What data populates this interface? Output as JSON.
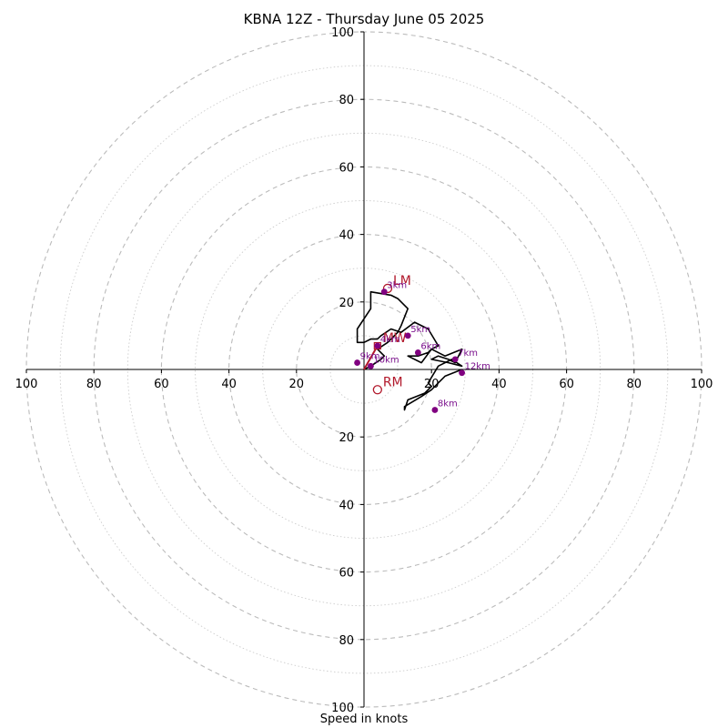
{
  "chart_data": {
    "type": "hodograph",
    "title": "KBNA 12Z - Thursday June 05 2025",
    "xlabel": "Speed in knots",
    "ylabel": "",
    "rlim": [
      0,
      100
    ],
    "tick_labels": [
      "100",
      "80",
      "60",
      "40",
      "20",
      "20",
      "40",
      "60",
      "80",
      "100"
    ],
    "grid": true,
    "hodograph_trace": {
      "u": [
        0,
        2,
        5,
        6,
        4,
        7,
        10,
        11,
        13,
        10,
        8,
        2,
        2,
        -2,
        -2,
        0,
        2,
        4,
        5,
        8,
        11,
        15,
        19,
        22,
        20,
        19,
        16,
        13,
        17,
        20,
        24,
        29,
        27,
        25,
        22,
        20,
        20,
        25,
        29,
        26,
        22,
        19,
        20,
        18,
        13,
        12,
        12,
        17,
        20,
        22,
        24,
        29
      ],
      "v": [
        0,
        1,
        3,
        4,
        6,
        8,
        11,
        13,
        18,
        21,
        22,
        23,
        18,
        12,
        8,
        8,
        9,
        9,
        10,
        12,
        11,
        14,
        12,
        7,
        6,
        5,
        4,
        4,
        2,
        6,
        4,
        6,
        2,
        3,
        4,
        3,
        3,
        2,
        1,
        3,
        1,
        -4,
        -5,
        -7,
        -9,
        -12,
        -11,
        -8,
        -6,
        -4,
        -2,
        0
      ]
    },
    "height_markers": [
      {
        "label": "10km",
        "u": 2,
        "v": 1
      },
      {
        "label": "9km",
        "u": -2,
        "v": 2
      },
      {
        "label": "4km",
        "u": 4,
        "v": 7
      },
      {
        "label": "5km",
        "u": 13,
        "v": 10
      },
      {
        "label": "6km",
        "u": 16,
        "v": 5
      },
      {
        "label": "7km",
        "u": 27,
        "v": 3
      },
      {
        "label": "12km",
        "u": 29,
        "v": -1
      },
      {
        "label": "8km",
        "u": 21,
        "v": -12
      },
      {
        "label": "3km",
        "u": 6,
        "v": 23
      }
    ],
    "motion_vectors": [
      {
        "label": "LM",
        "u": 7,
        "v": 24
      },
      {
        "label": "MW",
        "u": 4,
        "v": 7
      },
      {
        "label": "RM",
        "u": 4,
        "v": -6
      }
    ],
    "colors": {
      "trace": "#000000",
      "markers": "#800080",
      "motion": "#b2182b",
      "grid": "#bbbbbb"
    }
  }
}
